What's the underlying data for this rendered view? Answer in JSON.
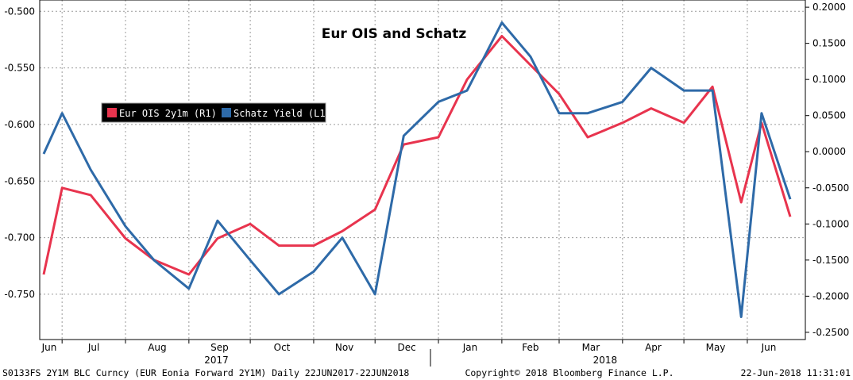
{
  "chart_data": {
    "type": "line",
    "title": "Eur OIS and Schatz",
    "x_ticks": [
      "Jun",
      "Jul",
      "Aug",
      "Sep",
      "Oct",
      "Nov",
      "Dec",
      "Jan",
      "Feb",
      "Mar",
      "Apr",
      "May",
      "Jun"
    ],
    "year_labels": [
      "2017",
      "2018"
    ],
    "y_left_ticks": [
      "-0.500",
      "-0.550",
      "-0.600",
      "-0.650",
      "-0.700",
      "-0.750"
    ],
    "y_right_ticks": [
      "0.2000",
      "0.1500",
      "0.1000",
      "0.0500",
      "0.0000",
      "-0.0500",
      "-0.1000",
      "-0.1500",
      "-0.2000",
      "-0.2500"
    ],
    "y_left_range": [
      -0.79,
      -0.49
    ],
    "y_right_range": [
      -0.26,
      0.21
    ],
    "legend_position": "top-left",
    "grid": true,
    "series": [
      {
        "name": "Eur OIS 2y1m (R1)",
        "axis": "right",
        "color": "#e8344e",
        "x": [
          "2017-06-22",
          "2017-07-01",
          "2017-07-15",
          "2017-08-01",
          "2017-08-15",
          "2017-09-01",
          "2017-09-15",
          "2017-10-01",
          "2017-10-15",
          "2017-11-01",
          "2017-11-15",
          "2017-12-01",
          "2017-12-15",
          "2018-01-01",
          "2018-01-15",
          "2018-02-01",
          "2018-02-15",
          "2018-03-01",
          "2018-03-15",
          "2018-04-01",
          "2018-04-15",
          "2018-05-01",
          "2018-05-15",
          "2018-05-29",
          "2018-06-08",
          "2018-06-22"
        ],
        "values": [
          -0.17,
          -0.05,
          -0.06,
          -0.12,
          -0.15,
          -0.17,
          -0.12,
          -0.1,
          -0.13,
          -0.13,
          -0.11,
          -0.08,
          0.01,
          0.02,
          0.1,
          0.16,
          0.12,
          0.08,
          0.02,
          0.04,
          0.06,
          0.04,
          0.09,
          -0.07,
          0.04,
          -0.09
        ]
      },
      {
        "name": "Schatz Yield (L1)",
        "axis": "left",
        "color": "#2e6aa8",
        "x": [
          "2017-06-22",
          "2017-07-01",
          "2017-07-15",
          "2017-08-01",
          "2017-08-15",
          "2017-09-01",
          "2017-09-15",
          "2017-10-01",
          "2017-10-15",
          "2017-11-01",
          "2017-11-15",
          "2017-12-01",
          "2017-12-15",
          "2018-01-01",
          "2018-01-15",
          "2018-02-01",
          "2018-02-15",
          "2018-03-01",
          "2018-03-15",
          "2018-04-01",
          "2018-04-15",
          "2018-05-01",
          "2018-05-15",
          "2018-05-29",
          "2018-06-08",
          "2018-06-22"
        ],
        "values": [
          -0.626,
          -0.59,
          -0.64,
          -0.69,
          -0.72,
          -0.745,
          -0.685,
          -0.72,
          -0.75,
          -0.73,
          -0.7,
          -0.75,
          -0.61,
          -0.58,
          -0.57,
          -0.51,
          -0.54,
          -0.59,
          -0.59,
          -0.58,
          -0.55,
          -0.57,
          -0.57,
          -0.77,
          -0.59,
          -0.666
        ]
      }
    ]
  },
  "footer": {
    "left": "S0133FS 2Y1M BLC Curncy (EUR Eonia Forward 2Y1M)  Daily 22JUN2017-22JUN2018",
    "center": "Copyright© 2018 Bloomberg Finance L.P.",
    "right": "22-Jun-2018 11:31:01"
  }
}
